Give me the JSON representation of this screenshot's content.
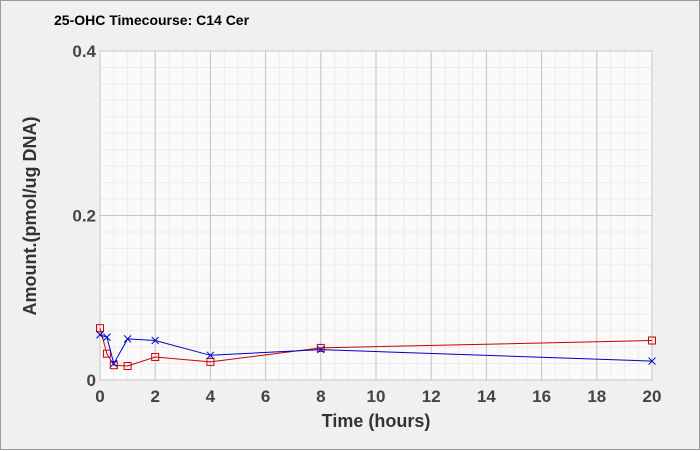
{
  "chart_data": {
    "type": "line",
    "title": "25-OHC Timecourse: C14 Cer",
    "xlabel": "Time (hours)",
    "ylabel": "Amount.(pmol/ug DNA)",
    "xlim": [
      0,
      20
    ],
    "ylim": [
      0,
      0.4
    ],
    "x_ticks": [
      0,
      2,
      4,
      6,
      8,
      10,
      12,
      14,
      16,
      18,
      20
    ],
    "y_ticks": [
      0,
      0.2,
      0.4
    ],
    "y_tick_labels": [
      "0",
      "0.2",
      "0.4"
    ],
    "grid": true,
    "legend": "none",
    "series": [
      {
        "marker": "square",
        "color": "#cc0000",
        "x": [
          0,
          0.25,
          0.5,
          1,
          2,
          4,
          8,
          20
        ],
        "y": [
          0.063,
          0.032,
          0.018,
          0.017,
          0.028,
          0.022,
          0.039,
          0.048
        ]
      },
      {
        "marker": "x",
        "color": "#0000cc",
        "x": [
          0,
          0.25,
          0.5,
          1,
          2,
          4,
          8,
          20
        ],
        "y": [
          0.055,
          0.052,
          0.02,
          0.05,
          0.048,
          0.03,
          0.037,
          0.023
        ]
      }
    ]
  }
}
